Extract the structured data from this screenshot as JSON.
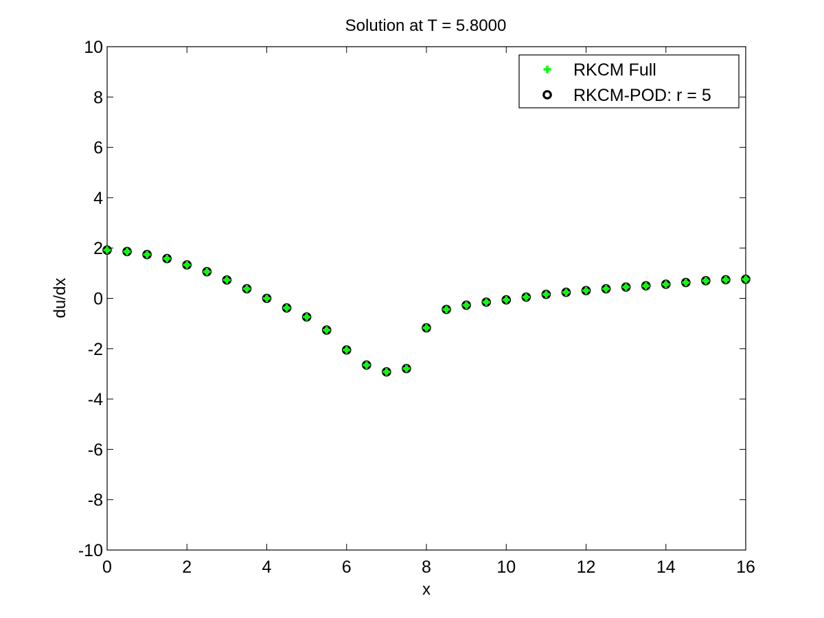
{
  "chart_data": {
    "type": "scatter",
    "title": "Solution at T = 5.8000",
    "xlabel": "x",
    "ylabel": "du/dx",
    "xlim": [
      0,
      16
    ],
    "ylim": [
      -10,
      10
    ],
    "xticks": [
      0,
      2,
      4,
      6,
      8,
      10,
      12,
      14,
      16
    ],
    "yticks": [
      -10,
      -8,
      -6,
      -4,
      -2,
      0,
      2,
      4,
      6,
      8,
      10
    ],
    "grid": false,
    "legend_position": "top-right",
    "x": [
      0,
      0.5,
      1,
      1.5,
      2,
      2.5,
      3,
      3.5,
      4,
      4.5,
      5,
      5.5,
      6,
      6.5,
      7,
      7.5,
      8,
      8.5,
      9,
      9.5,
      10,
      10.5,
      11,
      11.5,
      12,
      12.5,
      13,
      13.5,
      14,
      14.5,
      15,
      15.5,
      16
    ],
    "series": [
      {
        "name": "RKCM Full",
        "marker": "plus",
        "color": "#00ff00",
        "values": [
          1.92,
          1.86,
          1.74,
          1.58,
          1.33,
          1.06,
          0.73,
          0.38,
          0.0,
          -0.38,
          -0.74,
          -1.26,
          -2.05,
          -2.65,
          -2.92,
          -2.79,
          -1.17,
          -0.44,
          -0.27,
          -0.15,
          -0.06,
          0.05,
          0.16,
          0.24,
          0.31,
          0.38,
          0.45,
          0.5,
          0.56,
          0.63,
          0.7,
          0.74,
          0.76
        ]
      },
      {
        "name": "RKCM-POD: r = 5",
        "marker": "circle",
        "color": "#000000",
        "values": [
          1.92,
          1.86,
          1.74,
          1.58,
          1.33,
          1.06,
          0.73,
          0.38,
          0.0,
          -0.38,
          -0.74,
          -1.26,
          -2.05,
          -2.65,
          -2.92,
          -2.79,
          -1.17,
          -0.44,
          -0.27,
          -0.15,
          -0.06,
          0.05,
          0.16,
          0.24,
          0.31,
          0.38,
          0.45,
          0.5,
          0.56,
          0.63,
          0.7,
          0.74,
          0.76
        ]
      }
    ]
  }
}
